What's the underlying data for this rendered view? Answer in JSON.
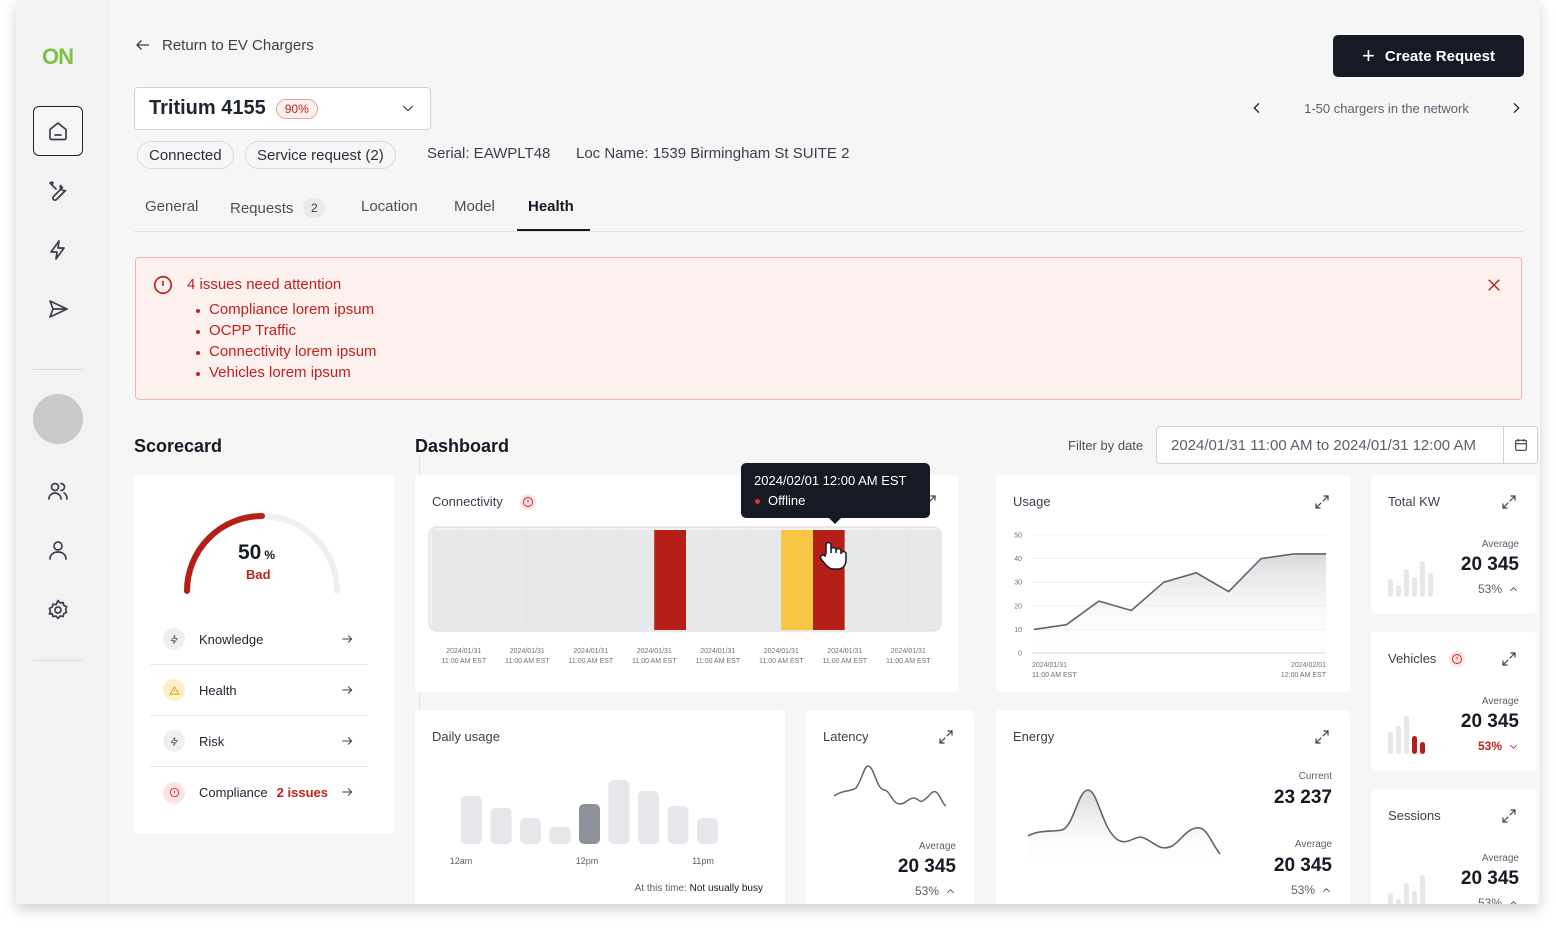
{
  "brand": {
    "logo_text": "ON",
    "accent": "#7dc242",
    "danger": "#c0221d",
    "warning": "#f8c545",
    "dark": "#151a24"
  },
  "sidebar": {
    "items": [
      {
        "icon": "home-icon"
      },
      {
        "icon": "tools-icon"
      },
      {
        "icon": "lightning-icon"
      },
      {
        "icon": "send-icon"
      },
      {
        "icon": "users-icon"
      },
      {
        "icon": "user-icon"
      },
      {
        "icon": "gear-icon"
      }
    ]
  },
  "header": {
    "back_label": "Return to EV Chargers",
    "create_label": "Create Request",
    "charger_name": "Tritium 4155",
    "charger_pct": "90%",
    "pager_label": "1-50 chargers in the network",
    "status_chip": "Connected",
    "service_chip": "Service request (2)",
    "serial": "Serial: EAWPLT48",
    "location": "Loc Name: 1539 Birmingham St SUITE 2"
  },
  "tabs": {
    "general": "General",
    "requests": "Requests",
    "requests_count": "2",
    "location": "Location",
    "model": "Model",
    "health": "Health"
  },
  "alert": {
    "title": "4 issues need attention",
    "items": [
      "Compliance lorem ipsum",
      "OCPP Traffic",
      "Connectivity lorem ipsum",
      "Vehicles lorem ipsum"
    ]
  },
  "scorecard": {
    "title": "Scorecard",
    "score": "50",
    "unit": "%",
    "score_fraction": 0.5,
    "status": "Bad",
    "rows": [
      {
        "label": "Knowledge",
        "issues": ""
      },
      {
        "label": "Health",
        "issues": ""
      },
      {
        "label": "Risk",
        "issues": ""
      },
      {
        "label": "Compliance",
        "issues": "2 issues"
      }
    ]
  },
  "dashboard": {
    "title": "Dashboard",
    "filter_label": "Filter by date",
    "date_range": "2024/01/31 11:00 AM to 2024/01/31 12:00 AM",
    "connectivity": {
      "title": "Connectivity",
      "tooltip_date": "2024/02/01 12:00 AM EST",
      "tooltip_status": "Offline",
      "tick_date": "2024/01/31",
      "tick_time": "11:00 AM EST"
    },
    "usage": {
      "title": "Usage",
      "x_start_date": "2024/01/31",
      "x_start_time": "11:00 AM EST",
      "x_end_date": "2024/02/01",
      "x_end_time": "12:00 AM EST"
    },
    "total_kw": {
      "title": "Total KW",
      "avg_label": "Average",
      "value": "20 345",
      "trend": "53%"
    },
    "vehicles": {
      "title": "Vehicles",
      "avg_label": "Average",
      "value": "20 345",
      "trend": "53%"
    },
    "sessions": {
      "title": "Sessions",
      "avg_label": "Average",
      "value": "20 345",
      "trend": "53%"
    },
    "daily_usage": {
      "title": "Daily usage",
      "x_labels": [
        "12am",
        "12pm",
        "11pm"
      ],
      "footer_prefix": "At this time:",
      "footer_value": "Not usually busy"
    },
    "latency": {
      "title": "Latency",
      "avg_label": "Average",
      "value": "20 345",
      "trend": "53%"
    },
    "energy": {
      "title": "Energy",
      "current_label": "Current",
      "current_value": "23 237",
      "avg_label": "Average",
      "value": "20 345",
      "trend": "53%"
    }
  },
  "chart_data": [
    {
      "type": "heatmap",
      "title": "Connectivity",
      "slots": 16,
      "states": [
        "ok",
        "ok",
        "ok",
        "ok",
        "ok",
        "ok",
        "ok",
        "offline",
        "ok",
        "ok",
        "ok",
        "warning",
        "offline",
        "ok",
        "ok",
        "ok"
      ],
      "x_ticks": 8
    },
    {
      "type": "line",
      "title": "Usage",
      "ylim": [
        0,
        50
      ],
      "y_ticks": [
        0,
        10,
        20,
        30,
        40,
        50
      ],
      "x": [
        0,
        1,
        2,
        3,
        4,
        5,
        6,
        7,
        8,
        9
      ],
      "values": [
        10,
        12,
        22,
        18,
        30,
        34,
        26,
        40,
        42,
        42
      ]
    },
    {
      "type": "bar",
      "title": "Daily usage",
      "values": [
        48,
        36,
        26,
        17,
        40,
        64,
        53,
        38,
        26
      ],
      "highlight_index": 4
    }
  ]
}
